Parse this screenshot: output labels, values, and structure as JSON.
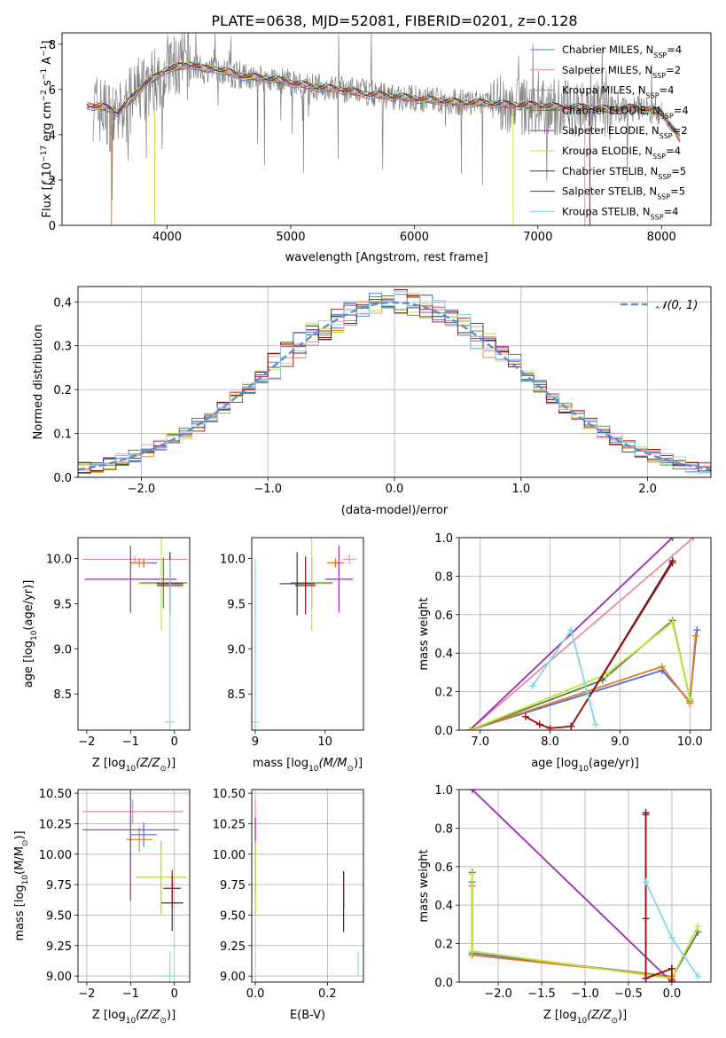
{
  "title": "PLATE=0638, MJD=52081, FIBERID=0201, z=0.128",
  "legend_entries": [
    {
      "label": "Chabrier MILES, N",
      "sub": "SSP",
      "suffix": "=4",
      "color": "#4a6fd8"
    },
    {
      "label": "Salpeter MILES, N",
      "sub": "SSP",
      "suffix": "=2",
      "color": "#e88aa6"
    },
    {
      "label": "Kroupa MILES, N",
      "sub": "SSP",
      "suffix": "=4",
      "color": "#e67a1e"
    },
    {
      "label": "Chabrier ELODIE, N",
      "sub": "SSP",
      "suffix": "=4",
      "color": "#4f7f4a"
    },
    {
      "label": "Salpeter ELODIE, N",
      "sub": "SSP",
      "suffix": "=2",
      "color": "#9a2cb0"
    },
    {
      "label": "Kroupa ELODIE, N",
      "sub": "SSP",
      "suffix": "=4",
      "color": "#c6e33a"
    },
    {
      "label": "Chabrier STELIB, N",
      "sub": "SSP",
      "suffix": "=5",
      "color": "#333333"
    },
    {
      "label": "Salpeter STELIB, N",
      "sub": "SSP",
      "suffix": "=5",
      "color": "#9e1010"
    },
    {
      "label": "Kroupa STELIB, N",
      "sub": "SSP",
      "suffix": "=4",
      "color": "#7fdae6"
    }
  ],
  "chart_data": [
    {
      "id": "spectrum",
      "type": "line",
      "xlabel": "wavelength [Angstrom, rest frame]",
      "ylabel_parts": [
        "Flux [",
        "f",
        "λ",
        "10",
        "−17",
        " erg cm",
        "−2",
        " s",
        "−1",
        " A",
        "−1",
        "]"
      ],
      "xlim": [
        3150,
        8400
      ],
      "ylim": [
        0,
        8.5
      ],
      "xticks": [
        4000,
        5000,
        6000,
        7000,
        8000
      ],
      "yticks": [
        0,
        2,
        4,
        6,
        8
      ],
      "data_color": "#808080",
      "data_x": [
        3400,
        3500,
        3600,
        3700,
        3800,
        3900,
        4000,
        4100,
        4200,
        4300,
        4400,
        4500,
        4600,
        4800,
        5000,
        5200,
        5400,
        5600,
        5800,
        6000,
        6200,
        6400,
        6600,
        6800,
        7000,
        7200,
        7400,
        7600,
        7800,
        8000
      ],
      "data_y": [
        5.3,
        5.0,
        4.6,
        5.4,
        6.1,
        6.4,
        6.9,
        7.0,
        7.1,
        6.8,
        6.9,
        6.7,
        6.6,
        6.5,
        6.3,
        6.1,
        6.0,
        5.9,
        5.7,
        5.6,
        5.5,
        5.4,
        5.4,
        5.3,
        5.2,
        5.2,
        5.2,
        5.1,
        5.2,
        5.0
      ],
      "model_x": [
        3350,
        3500,
        3600,
        3700,
        3800,
        3900,
        4000,
        4100,
        4200,
        4300,
        4400,
        4600,
        4800,
        5000,
        5200,
        5400,
        5600,
        5800,
        6000,
        6200,
        6400,
        6600,
        6800,
        7000,
        7200,
        7400,
        7600,
        7800,
        8000,
        8150
      ],
      "model_y": [
        5.3,
        5.2,
        5.0,
        5.5,
        6.2,
        6.5,
        6.9,
        7.0,
        7.1,
        6.9,
        6.9,
        6.6,
        6.5,
        6.3,
        6.1,
        6.0,
        5.8,
        5.7,
        5.6,
        5.5,
        5.4,
        5.4,
        5.3,
        5.3,
        5.2,
        5.2,
        5.1,
        5.2,
        5.0,
        3.8
      ]
    },
    {
      "id": "residuals",
      "type": "line",
      "xlabel": "(data-model)/error",
      "ylabel": "Normed distribution",
      "xlim": [
        -2.5,
        2.5
      ],
      "ylim": [
        0,
        0.435
      ],
      "xticks": [
        -2,
        -1,
        0,
        1,
        2
      ],
      "yticks": [
        0,
        0.1,
        0.2,
        0.3,
        0.4
      ],
      "legend_label": "𝒩(0, 1)",
      "legend_color": "#5b8ed6",
      "gaussian_mean": 0,
      "gaussian_sigma": 1
    },
    {
      "id": "age_vs_Z",
      "type": "scatter",
      "xlabel_parts": [
        "Z [log",
        "10",
        "(Z/Z",
        "⊙",
        ")]"
      ],
      "ylabel_parts": [
        "age  [log",
        "10",
        "(age/yr)]"
      ],
      "xlim": [
        -2.2,
        0.35
      ],
      "ylim": [
        8.1,
        10.23
      ],
      "xticks": [
        -2,
        -1,
        0
      ],
      "yticks": [
        8.5,
        9.0,
        9.5,
        10.0
      ],
      "points": [
        {
          "x": -0.7,
          "y": 9.95,
          "xe": 0.3,
          "ye": 0.05,
          "c": "#4a6fd8"
        },
        {
          "x": -0.9,
          "y": 9.99,
          "xe": 1.2,
          "ye": 0.03,
          "c": "#e88aa6"
        },
        {
          "x": -0.8,
          "y": 9.95,
          "xe": 0.2,
          "ye": 0.05,
          "c": "#e67a1e"
        },
        {
          "x": -0.25,
          "y": 9.73,
          "xe": 0.55,
          "ye": 0.28,
          "c": "#4f7f4a"
        },
        {
          "x": -1.0,
          "y": 9.77,
          "xe": 1.05,
          "ye": 0.37,
          "c": "#9a2cb0"
        },
        {
          "x": -0.3,
          "y": 9.72,
          "xe": 0.55,
          "ye": 0.52,
          "c": "#c6e33a"
        },
        {
          "x": -0.1,
          "y": 9.72,
          "xe": 0.3,
          "ye": 0.35,
          "c": "#333333"
        },
        {
          "x": -0.1,
          "y": 9.7,
          "xe": 0.3,
          "ye": 0.32,
          "c": "#9e1010"
        },
        {
          "x": -0.1,
          "y": 8.19,
          "xe": 0.12,
          "ye": 1.8,
          "c": "#7fdae6"
        }
      ]
    },
    {
      "id": "age_vs_mass",
      "type": "scatter",
      "xlabel_parts": [
        "mass [log",
        "10",
        "(M/M",
        "⊙",
        ")]"
      ],
      "ylabel": "",
      "xlim": [
        8.95,
        10.55
      ],
      "ylim": [
        8.1,
        10.23
      ],
      "xticks": [
        9,
        10
      ],
      "yticks": [
        8.5,
        9.0,
        9.5,
        10.0
      ],
      "points": [
        {
          "x": 10.15,
          "y": 9.95,
          "xe": 0.12,
          "ye": 0.05,
          "c": "#4a6fd8"
        },
        {
          "x": 10.35,
          "y": 9.99,
          "xe": 0.1,
          "ye": 0.05,
          "c": "#e88aa6"
        },
        {
          "x": 10.15,
          "y": 9.95,
          "xe": 0.12,
          "ye": 0.05,
          "c": "#e67a1e"
        },
        {
          "x": 9.81,
          "y": 9.73,
          "xe": 0.3,
          "ye": 0.28,
          "c": "#4f7f4a"
        },
        {
          "x": 10.2,
          "y": 9.77,
          "xe": 0.2,
          "ye": 0.37,
          "c": "#9a2cb0"
        },
        {
          "x": 9.81,
          "y": 9.72,
          "xe": 0.3,
          "ye": 0.52,
          "c": "#c6e33a"
        },
        {
          "x": 9.6,
          "y": 9.72,
          "xe": 0.25,
          "ye": 0.35,
          "c": "#333333"
        },
        {
          "x": 9.72,
          "y": 9.7,
          "xe": 0.15,
          "ye": 0.32,
          "c": "#9e1010"
        },
        {
          "x": 9.0,
          "y": 8.19,
          "xe": 0.05,
          "ye": 1.8,
          "c": "#7fdae6"
        }
      ]
    },
    {
      "id": "weight_vs_age",
      "type": "line",
      "xlabel_parts": [
        "age  [log",
        "10",
        "(age/yr)]"
      ],
      "ylabel": "mass weight",
      "xlim": [
        6.7,
        10.3
      ],
      "ylim": [
        0,
        1
      ],
      "xticks": [
        7,
        8,
        9,
        10
      ],
      "yticks": [
        0,
        0.2,
        0.4,
        0.6,
        0.8,
        1.0
      ],
      "series": [
        {
          "c": "#4a6fd8",
          "x": [
            6.85,
            9.6,
            10.0,
            10.1
          ],
          "y": [
            0,
            0.31,
            0.15,
            0.52
          ]
        },
        {
          "c": "#e88aa6",
          "x": [
            6.85,
            10.05
          ],
          "y": [
            0,
            1.0
          ]
        },
        {
          "c": "#e67a1e",
          "x": [
            6.85,
            9.6,
            10.0,
            10.08
          ],
          "y": [
            0,
            0.33,
            0.14,
            0.49
          ]
        },
        {
          "c": "#4f7f4a",
          "x": [
            6.85,
            8.75,
            9.75,
            10.0
          ],
          "y": [
            0,
            0.26,
            0.57,
            0.16
          ]
        },
        {
          "c": "#9a2cb0",
          "x": [
            6.85,
            9.75
          ],
          "y": [
            0,
            1.0
          ]
        },
        {
          "c": "#c6e33a",
          "x": [
            6.85,
            8.8,
            9.75,
            10.0
          ],
          "y": [
            0,
            0.29,
            0.56,
            0.16
          ]
        },
        {
          "c": "#333333",
          "x": [
            8.3,
            9.75
          ],
          "y": [
            0.02,
            0.88
          ]
        },
        {
          "c": "#9e1010",
          "x": [
            7.65,
            7.85,
            8.0,
            8.3,
            9.75
          ],
          "y": [
            0.07,
            0.03,
            0.01,
            0.02,
            0.87
          ]
        },
        {
          "c": "#7fdae6",
          "x": [
            7.75,
            8.3,
            8.65
          ],
          "y": [
            0.23,
            0.52,
            0.03
          ]
        }
      ]
    },
    {
      "id": "mass_vs_Z",
      "type": "scatter",
      "xlabel_parts": [
        "Z [log",
        "10",
        "(Z/Z",
        "⊙",
        ")]"
      ],
      "ylabel_parts": [
        "mass [log",
        "10",
        "(M/M",
        "⊙",
        ")]"
      ],
      "xlim": [
        -2.2,
        0.35
      ],
      "ylim": [
        8.95,
        10.53
      ],
      "xticks": [
        -2,
        -1,
        0
      ],
      "yticks": [
        9.0,
        9.25,
        9.5,
        9.75,
        10.0,
        10.25,
        10.5
      ],
      "points": [
        {
          "x": -0.7,
          "y": 10.16,
          "xe": 0.3,
          "ye": 0.1,
          "c": "#4a6fd8"
        },
        {
          "x": -0.95,
          "y": 10.35,
          "xe": 1.15,
          "ye": 0.1,
          "c": "#e88aa6"
        },
        {
          "x": -0.8,
          "y": 10.12,
          "xe": 0.3,
          "ye": 0.1,
          "c": "#e67a1e"
        },
        {
          "x": -0.3,
          "y": 9.81,
          "xe": 0.58,
          "ye": 0.3,
          "c": "#4f7f4a"
        },
        {
          "x": -1.0,
          "y": 10.2,
          "xe": 1.1,
          "ye": 0.58,
          "c": "#9a2cb0"
        },
        {
          "x": -0.3,
          "y": 9.81,
          "xe": 0.58,
          "ye": 0.3,
          "c": "#c6e33a"
        },
        {
          "x": -0.05,
          "y": 9.6,
          "xe": 0.25,
          "ye": 0.23,
          "c": "#333333"
        },
        {
          "x": -0.05,
          "y": 9.72,
          "xe": 0.2,
          "ye": 0.15,
          "c": "#9e1010"
        },
        {
          "x": -0.1,
          "y": 9.0,
          "xe": 0.12,
          "ye": 0.2,
          "c": "#7fdae6"
        }
      ]
    },
    {
      "id": "mass_vs_EBV",
      "type": "scatter",
      "xlabel": "E(B-V)",
      "ylabel": "",
      "xlim": [
        -0.01,
        0.3
      ],
      "ylim": [
        8.95,
        10.53
      ],
      "xticks": [
        0.0,
        0.2
      ],
      "yticks": [
        9.0,
        9.25,
        9.5,
        9.75,
        10.0,
        10.25,
        10.5
      ],
      "points": [
        {
          "x": 0.0,
          "y": 10.3,
          "xe": 0,
          "ye": 0.15,
          "c": "#e88aa6"
        },
        {
          "x": 0.0,
          "y": 9.8,
          "xe": 0,
          "ye": 0.3,
          "c": "#4f7f4a"
        },
        {
          "x": 0.0,
          "y": 10.0,
          "xe": 0,
          "ye": 0.3,
          "c": "#9a2cb0"
        },
        {
          "x": 0.0,
          "y": 9.8,
          "xe": 0,
          "ye": 0.3,
          "c": "#c6e33a"
        },
        {
          "x": 0.245,
          "y": 9.61,
          "xe": 0,
          "ye": 0.25,
          "c": "#333333"
        },
        {
          "x": 0.245,
          "y": 9.7,
          "xe": 0,
          "ye": 0.15,
          "c": "#9e1010"
        },
        {
          "x": 0.285,
          "y": 9.1,
          "xe": 0,
          "ye": 0.1,
          "c": "#7fdae6"
        }
      ]
    },
    {
      "id": "weight_vs_Z",
      "type": "line",
      "xlabel_parts": [
        "Z [log",
        "10",
        "(Z/Z",
        "⊙",
        ")]"
      ],
      "ylabel": "mass weight",
      "xlim": [
        -2.45,
        0.45
      ],
      "ylim": [
        0,
        1
      ],
      "xticks": [
        -2.0,
        -1.5,
        -1.0,
        -0.5,
        0.0
      ],
      "yticks": [
        0,
        0.2,
        0.4,
        0.6,
        0.8,
        1.0
      ],
      "series": [
        {
          "c": "#4a6fd8",
          "x": [
            -2.3,
            -2.3,
            0.0,
            0.0
          ],
          "y": [
            0.52,
            0.15,
            0.03,
            0.0
          ]
        },
        {
          "c": "#e67a1e",
          "x": [
            -2.3,
            -2.3,
            0.0
          ],
          "y": [
            0.5,
            0.14,
            0.03
          ]
        },
        {
          "c": "#4f7f4a",
          "x": [
            -2.3,
            -2.3,
            0.0,
            0.3
          ],
          "y": [
            0.57,
            0.16,
            0.02,
            0.26
          ]
        },
        {
          "c": "#9a2cb0",
          "x": [
            -2.3,
            0.0
          ],
          "y": [
            1.0,
            0.0
          ]
        },
        {
          "c": "#c6e33a",
          "x": [
            -2.3,
            -2.3,
            0.0,
            0.3
          ],
          "y": [
            0.56,
            0.16,
            0.02,
            0.29
          ]
        },
        {
          "c": "#333333",
          "x": [
            -0.3,
            -0.3,
            0.0
          ],
          "y": [
            0.88,
            0.02,
            0.07
          ]
        },
        {
          "c": "#9e1010",
          "x": [
            -0.3,
            -0.3,
            -0.3,
            0.0,
            0.0
          ],
          "y": [
            0.87,
            0.33,
            0.02,
            0.07,
            0.01
          ]
        },
        {
          "c": "#7fdae6",
          "x": [
            -0.3,
            0.0,
            0.3
          ],
          "y": [
            0.52,
            0.23,
            0.03
          ]
        }
      ]
    }
  ]
}
